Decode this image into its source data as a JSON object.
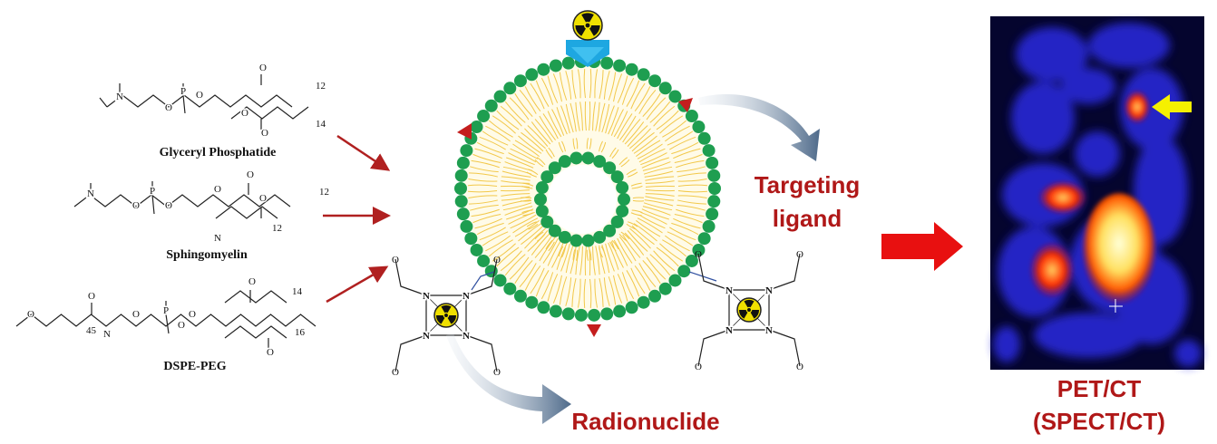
{
  "lipids": [
    {
      "name": "Glyceryl Phosphatide",
      "atoms": [
        "N",
        "O",
        "P",
        "O",
        "O",
        "O",
        "O"
      ],
      "chains": [
        "12",
        "14"
      ]
    },
    {
      "name": "Sphingomyelin",
      "atoms": [
        "N",
        "O",
        "P",
        "O",
        "O",
        "O",
        "N",
        "O"
      ],
      "chains": [
        "12",
        "12"
      ]
    },
    {
      "name": "DSPE-PEG",
      "atoms": [
        "O",
        "O",
        "N",
        "O",
        "P",
        "O",
        "O",
        "O",
        "O"
      ],
      "chains": [
        "45",
        "14",
        "16"
      ]
    }
  ],
  "chelators": [
    {
      "atoms": [
        "O",
        "O",
        "O",
        "O",
        "N",
        "N",
        "N",
        "N"
      ]
    },
    {
      "atoms": [
        "O",
        "O",
        "O",
        "O",
        "N",
        "N",
        "N",
        "N"
      ]
    }
  ],
  "labels": {
    "targeting": [
      "Targeting",
      "ligand"
    ],
    "radionuclide": "Radionuclide"
  },
  "imaging": {
    "lines": [
      "PET/CT",
      "(SPECT/CT)"
    ]
  }
}
